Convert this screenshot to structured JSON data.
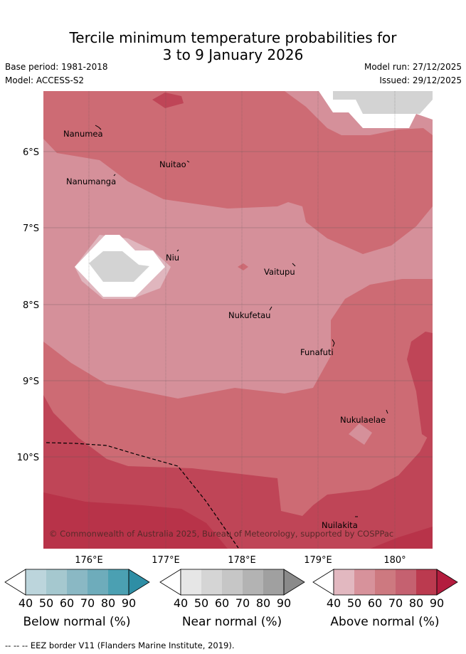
{
  "title": {
    "line1": "Tercile minimum temperature probabilities for",
    "line2": "3 to 9 January 2026"
  },
  "meta": {
    "base_period": "Base period: 1981-2018",
    "model": "Model: ACCESS-S2",
    "model_run": "Model run: 27/12/2025",
    "issued": "Issued: 29/12/2025"
  },
  "axes": {
    "lat_labels": [
      "6°S",
      "7°S",
      "8°S",
      "9°S",
      "10°S"
    ],
    "lon_labels": [
      "176°E",
      "177°E",
      "178°E",
      "179°E",
      "180°"
    ]
  },
  "places": [
    "Nanumea",
    "Nuitao",
    "Nanumanga",
    "Niu",
    "Vaitupu",
    "Nukufetau",
    "Funafuti",
    "Nukulaelae",
    "Nuilakita"
  ],
  "copyright": "© Commonwealth of Australia 2025, Bureau of Meteorology, supported by COSPPac",
  "colorbars": [
    {
      "label": "Below normal (%)",
      "ticks": [
        "40",
        "50",
        "60",
        "70",
        "80",
        "90"
      ],
      "colors": [
        "#ffffff",
        "#bcd5dc",
        "#a5c8cf",
        "#8ab8c4",
        "#6eacbb",
        "#4ba0b2",
        "#2e8ea5"
      ]
    },
    {
      "label": "Near normal (%)",
      "ticks": [
        "40",
        "50",
        "60",
        "70",
        "80",
        "90"
      ],
      "colors": [
        "#ffffff",
        "#e6e6e6",
        "#d5d5d5",
        "#c6c6c6",
        "#b3b3b3",
        "#a0a0a0",
        "#8a8a8a"
      ]
    },
    {
      "label": "Above normal (%)",
      "ticks": [
        "40",
        "50",
        "60",
        "70",
        "80",
        "90"
      ],
      "colors": [
        "#ffffff",
        "#e2b8c0",
        "#d7929b",
        "#cd7980",
        "#c56170",
        "#bb3a4f",
        "#b31c3e"
      ]
    }
  ],
  "footer": "--  --  -- EEZ border V11 (Flanders Marine Institute, 2019)."
}
